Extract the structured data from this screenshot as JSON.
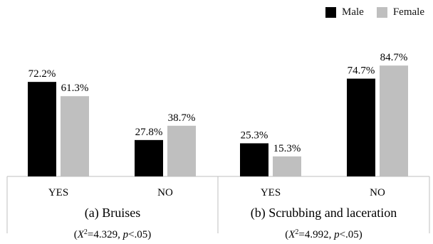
{
  "colors": {
    "male": "#000000",
    "female": "#bfbfbf",
    "axis": "#bfbfbf"
  },
  "legend": {
    "male": "Male",
    "female": "Female"
  },
  "chart_data": {
    "type": "bar",
    "series_names": [
      "Male",
      "Female"
    ],
    "ylim": [
      0,
      100
    ],
    "grid": false,
    "legend_position": "top-right",
    "panels": [
      {
        "title": "(a) Bruises",
        "stat_prefix": "(",
        "stat_x": "X",
        "stat_sup": "2",
        "stat_eq": "=4.329, ",
        "stat_p": "p",
        "stat_tail": "<.05)",
        "categories": [
          "YES",
          "NO"
        ],
        "series": [
          {
            "name": "Male",
            "values": [
              72.2,
              27.8
            ],
            "labels": [
              "72.2%",
              "27.8%"
            ]
          },
          {
            "name": "Female",
            "values": [
              61.3,
              38.7
            ],
            "labels": [
              "61.3%",
              "38.7%"
            ]
          }
        ]
      },
      {
        "title": "(b) Scrubbing and laceration",
        "stat_prefix": "(",
        "stat_x": "X",
        "stat_sup": "2",
        "stat_eq": "=4.992, ",
        "stat_p": "p",
        "stat_tail": "<.05)",
        "categories": [
          "YES",
          "NO"
        ],
        "series": [
          {
            "name": "Male",
            "values": [
              25.3,
              74.7
            ],
            "labels": [
              "25.3%",
              "74.7%"
            ]
          },
          {
            "name": "Female",
            "values": [
              15.3,
              84.7
            ],
            "labels": [
              "15.3%",
              "84.7%"
            ]
          }
        ]
      }
    ]
  }
}
